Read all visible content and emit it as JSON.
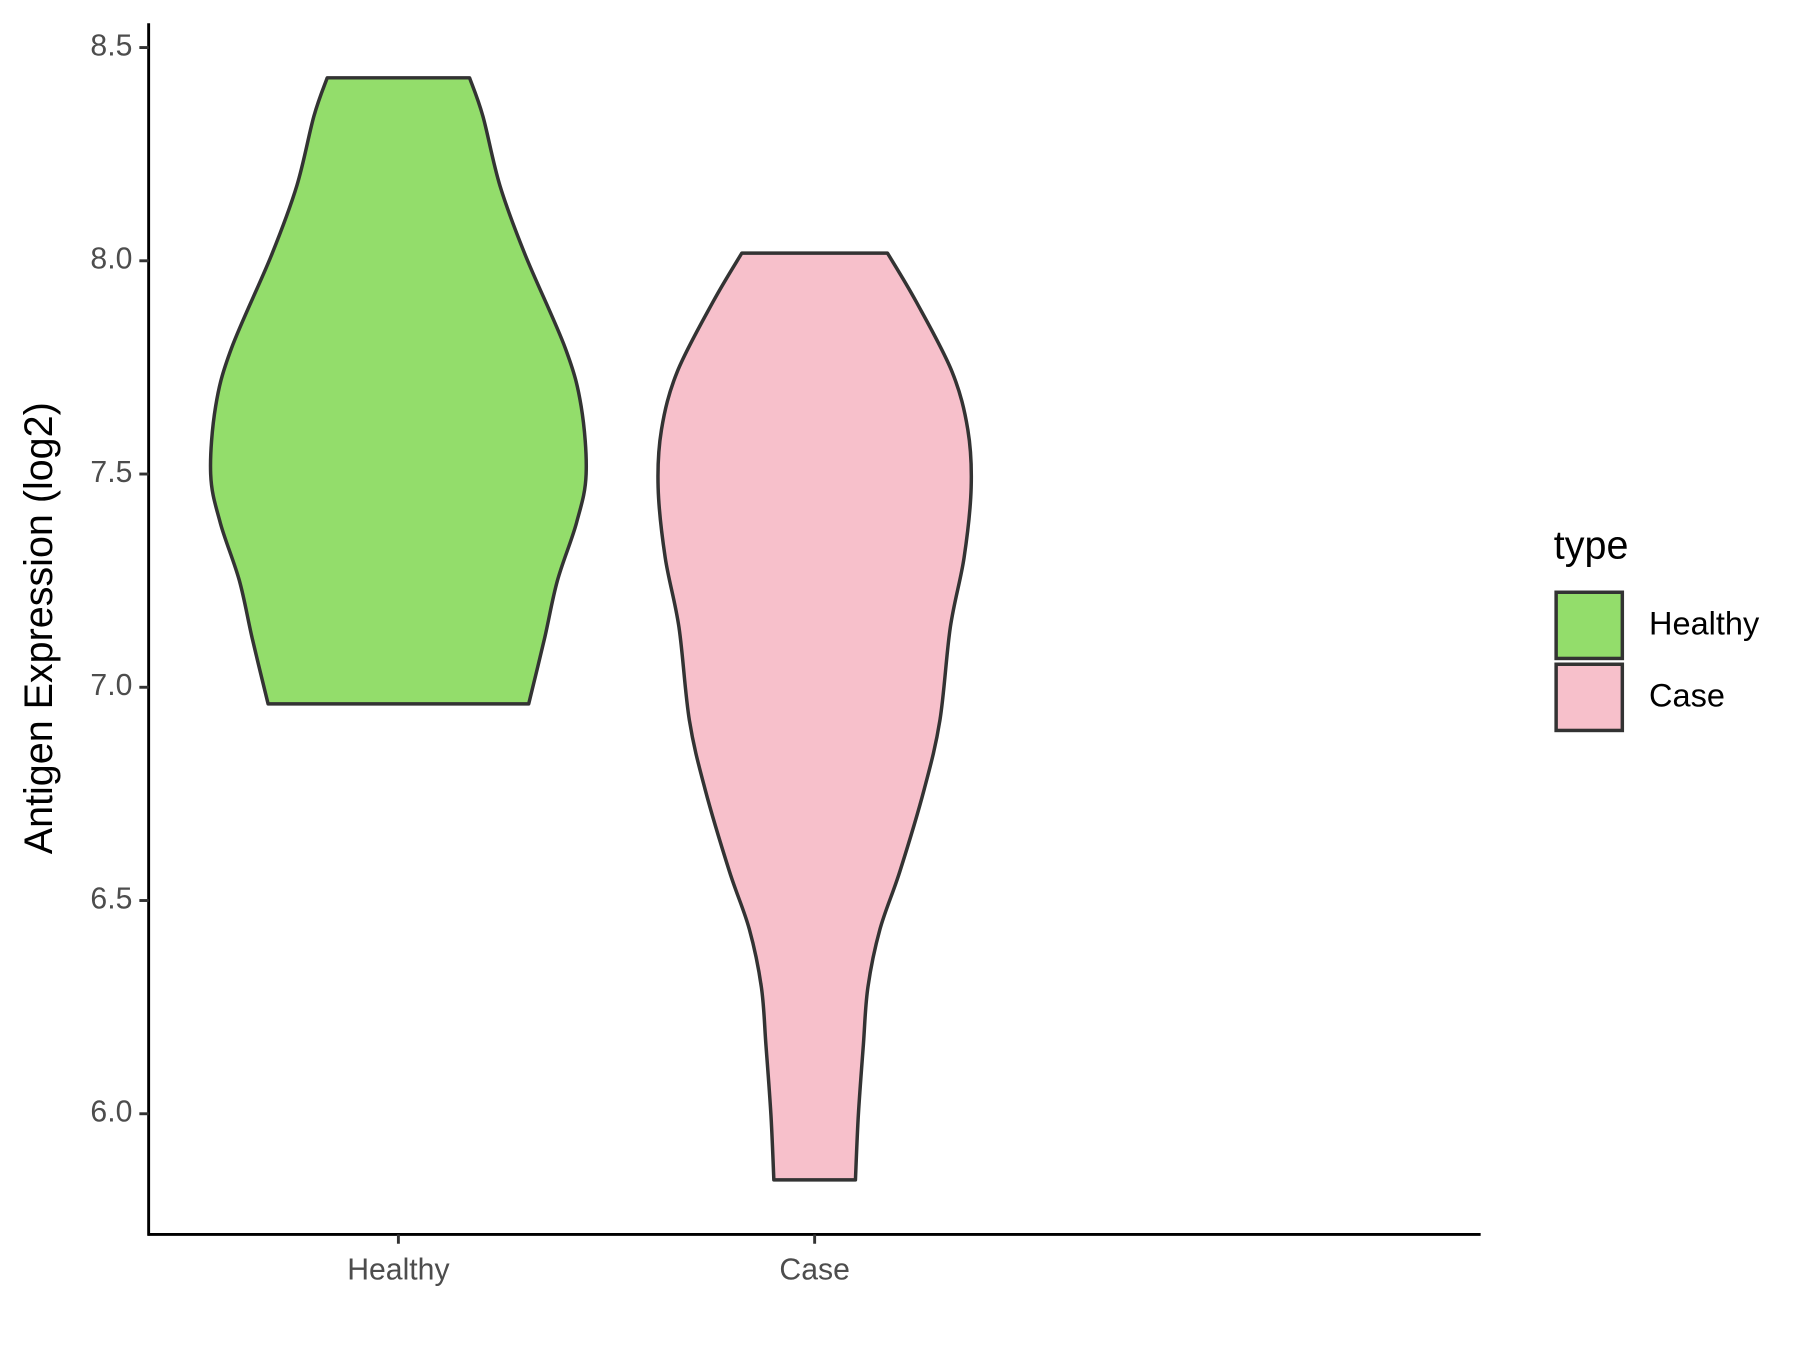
{
  "chart_data": {
    "type": "violin",
    "y_label": "Antigen Expression (log2)",
    "categories": [
      "Healthy",
      "Case"
    ],
    "ylim": [
      5.717,
      8.557
    ],
    "yticks": [
      {
        "value": 6,
        "label": "6.0"
      },
      {
        "value": 6.5,
        "label": "6.5"
      },
      {
        "value": 7,
        "label": "7.0"
      },
      {
        "value": 7.5,
        "label": "7.5"
      },
      {
        "value": 8,
        "label": "8.0"
      },
      {
        "value": 8.5,
        "label": "8.5"
      }
    ],
    "legend_title": "type",
    "legend_position": "right",
    "series": [
      {
        "name": "Healthy",
        "color": "#93dd6b",
        "y": [
          8.429,
          8.339,
          8.176,
          8.013,
          7.795,
          7.659,
          7.5,
          7.386,
          7.25,
          7.114,
          6.961
        ],
        "width": [
          0.171,
          0.203,
          0.244,
          0.305,
          0.401,
          0.439,
          0.451,
          0.428,
          0.382,
          0.351,
          0.313
        ]
      },
      {
        "name": "Case",
        "color": "#f7c0cb",
        "y": [
          8.018,
          7.904,
          7.74,
          7.604,
          7.468,
          7.304,
          7.141,
          6.923,
          6.76,
          6.569,
          6.433,
          6.297,
          6.161,
          5.997,
          5.845
        ],
        "width": [
          0.175,
          0.244,
          0.33,
          0.368,
          0.376,
          0.359,
          0.326,
          0.301,
          0.263,
          0.205,
          0.157,
          0.128,
          0.117,
          0.105,
          0.098
        ]
      }
    ]
  }
}
